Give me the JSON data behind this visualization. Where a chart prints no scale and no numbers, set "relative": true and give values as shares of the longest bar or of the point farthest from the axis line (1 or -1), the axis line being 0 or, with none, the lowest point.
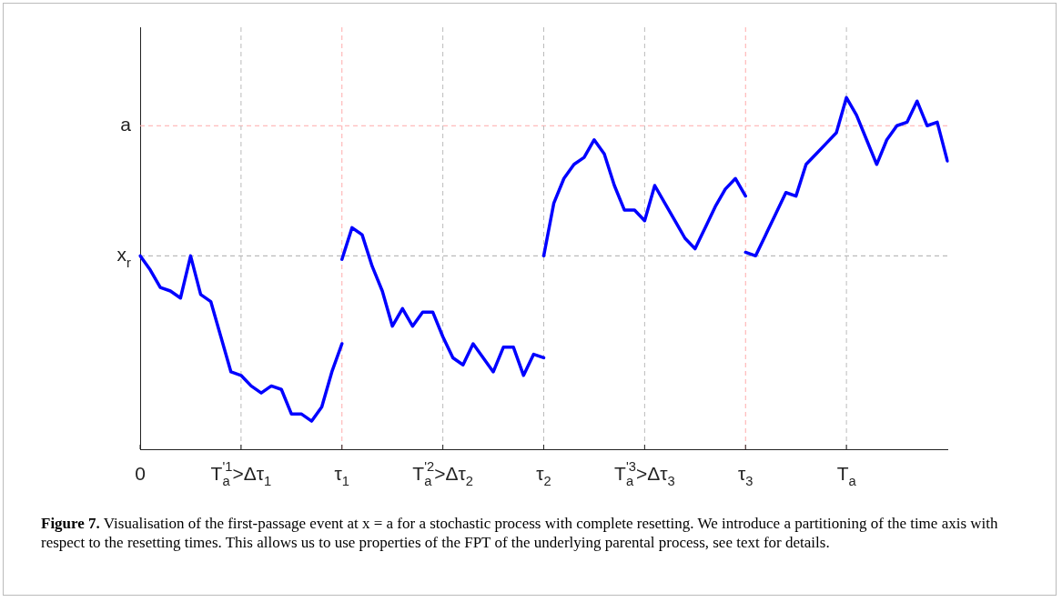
{
  "chart_data": {
    "type": "line",
    "relative": true,
    "categories": [
      "0",
      null,
      null,
      null,
      null,
      null,
      null,
      null,
      null,
      null,
      "T$^{'1}$$_{a}$>Δτ$_{1}$",
      null,
      null,
      null,
      null,
      null,
      null,
      null,
      null,
      null,
      "τ$_{1}$",
      null,
      null,
      null,
      null,
      null,
      null,
      null,
      null,
      null,
      "T$^{'2}$$_{a}$>Δτ$_{2}$",
      null,
      null,
      null,
      null,
      null,
      null,
      null,
      null,
      null,
      "τ$_{2}$",
      null,
      null,
      null,
      null,
      null,
      null,
      null,
      null,
      null,
      "T$^{'3}$$_{a}$>Δτ$_{3}$",
      null,
      null,
      null,
      null,
      null,
      null,
      null,
      null,
      null,
      "τ$_{3}$",
      null,
      null,
      null,
      null,
      null,
      null,
      null,
      null,
      null,
      "T$_{a}$",
      null,
      null,
      null,
      null,
      null,
      null,
      null,
      null,
      null,
      null
    ],
    "series": [
      {
        "color": "#0000ff",
        "values": [
          0.55,
          0.51,
          0.46,
          0.45,
          0.43,
          0.55,
          0.44,
          0.42,
          0.32,
          0.22,
          0.21,
          0.18,
          0.16,
          0.18,
          0.17,
          0.1,
          0.1,
          0.08,
          0.12,
          0.22,
          0.3,
          null,
          null,
          null,
          null,
          null,
          null,
          null,
          null,
          null,
          null,
          null,
          null,
          null,
          null,
          null,
          null,
          null,
          null,
          null,
          null,
          null,
          null,
          null,
          null,
          null,
          null,
          null,
          null,
          null,
          null,
          null,
          null,
          null,
          null,
          null,
          null,
          null,
          null,
          null,
          null,
          null,
          null,
          null,
          null,
          null,
          null,
          null,
          null,
          null,
          null,
          null,
          null,
          null,
          null,
          null,
          null,
          null,
          null,
          null,
          null
        ]
      },
      {
        "color": "#0000ff",
        "values": [
          null,
          null,
          null,
          null,
          null,
          null,
          null,
          null,
          null,
          null,
          null,
          null,
          null,
          null,
          null,
          null,
          null,
          null,
          null,
          null,
          0.54,
          0.63,
          0.61,
          0.52,
          0.45,
          0.35,
          0.4,
          0.35,
          0.39,
          0.39,
          0.32,
          0.26,
          0.24,
          0.3,
          0.26,
          0.22,
          0.29,
          0.29,
          0.21,
          0.27,
          0.26,
          null,
          null,
          null,
          null,
          null,
          null,
          null,
          null,
          null,
          null,
          null,
          null,
          null,
          null,
          null,
          null,
          null,
          null,
          null,
          null,
          null,
          null,
          null,
          null,
          null,
          null,
          null,
          null,
          null,
          null,
          null,
          null,
          null,
          null,
          null,
          null,
          null,
          null,
          null,
          null
        ]
      },
      {
        "color": "#0000ff",
        "values": [
          null,
          null,
          null,
          null,
          null,
          null,
          null,
          null,
          null,
          null,
          null,
          null,
          null,
          null,
          null,
          null,
          null,
          null,
          null,
          null,
          null,
          null,
          null,
          null,
          null,
          null,
          null,
          null,
          null,
          null,
          null,
          null,
          null,
          null,
          null,
          null,
          null,
          null,
          null,
          null,
          0.55,
          0.7,
          0.77,
          0.81,
          0.83,
          0.88,
          0.84,
          0.75,
          0.68,
          0.68,
          0.65,
          0.75,
          0.7,
          0.65,
          0.6,
          0.57,
          0.63,
          0.69,
          0.74,
          0.77,
          0.72,
          null,
          null,
          null,
          null,
          null,
          null,
          null,
          null,
          null,
          null,
          null,
          null,
          null,
          null,
          null,
          null,
          null,
          null,
          null,
          null
        ]
      },
      {
        "color": "#0000ff",
        "values": [
          null,
          null,
          null,
          null,
          null,
          null,
          null,
          null,
          null,
          null,
          null,
          null,
          null,
          null,
          null,
          null,
          null,
          null,
          null,
          null,
          null,
          null,
          null,
          null,
          null,
          null,
          null,
          null,
          null,
          null,
          null,
          null,
          null,
          null,
          null,
          null,
          null,
          null,
          null,
          null,
          null,
          null,
          null,
          null,
          null,
          null,
          null,
          null,
          null,
          null,
          null,
          null,
          null,
          null,
          null,
          null,
          null,
          null,
          null,
          null,
          0.56,
          0.55,
          0.61,
          0.67,
          0.73,
          0.72,
          0.81,
          0.84,
          0.87,
          0.9,
          1.0,
          0.95,
          0.88,
          0.81,
          0.88,
          0.92,
          0.93,
          0.99,
          0.92,
          0.93,
          0.82
        ]
      }
    ],
    "ref_lines": [
      {
        "axis": "y",
        "value": 0.92,
        "label": "a",
        "color": "#ffaaaa",
        "line_style": "dashed"
      },
      {
        "axis": "y",
        "value": 0.55,
        "label": "x$_{r}$",
        "color": "#aaaaaa",
        "line_style": "dashed"
      },
      {
        "axis": "x",
        "value": "T$^{'1}$$_{a}$>Δτ$_{1}$",
        "color": "#bbbbbb",
        "line_style": "dashed"
      },
      {
        "axis": "x",
        "value": "τ$_{1}$",
        "color": "#ffaaaa",
        "line_style": "dashed"
      },
      {
        "axis": "x",
        "value": "T$^{'2}$$_{a}$>Δτ$_{2}$",
        "color": "#bbbbbb",
        "line_style": "dashed"
      },
      {
        "axis": "x",
        "value": "τ$_{2}$",
        "color": "#bbbbbb",
        "line_style": "dashed"
      },
      {
        "axis": "x",
        "value": "T$^{'3}$$_{a}$>Δτ$_{3}$",
        "color": "#bbbbbb",
        "line_style": "dashed"
      },
      {
        "axis": "x",
        "value": "τ$_{3}$",
        "color": "#ffaaaa",
        "line_style": "dashed"
      },
      {
        "axis": "x",
        "value": "T$_{a}$",
        "color": "#bbbbbb",
        "line_style": "dashed"
      }
    ],
    "grid": false,
    "legend": false,
    "marker": "none",
    "line_style": "solid",
    "annotations": [
      "Figure 7. Visualisation of the first-passage event at x = a for a stochastic process with complete resetting. We introduce a partitioning of the time axis with respect to the resetting times. This allows us to use properties of the FPT of the underlying parental process, see text for details."
    ]
  }
}
